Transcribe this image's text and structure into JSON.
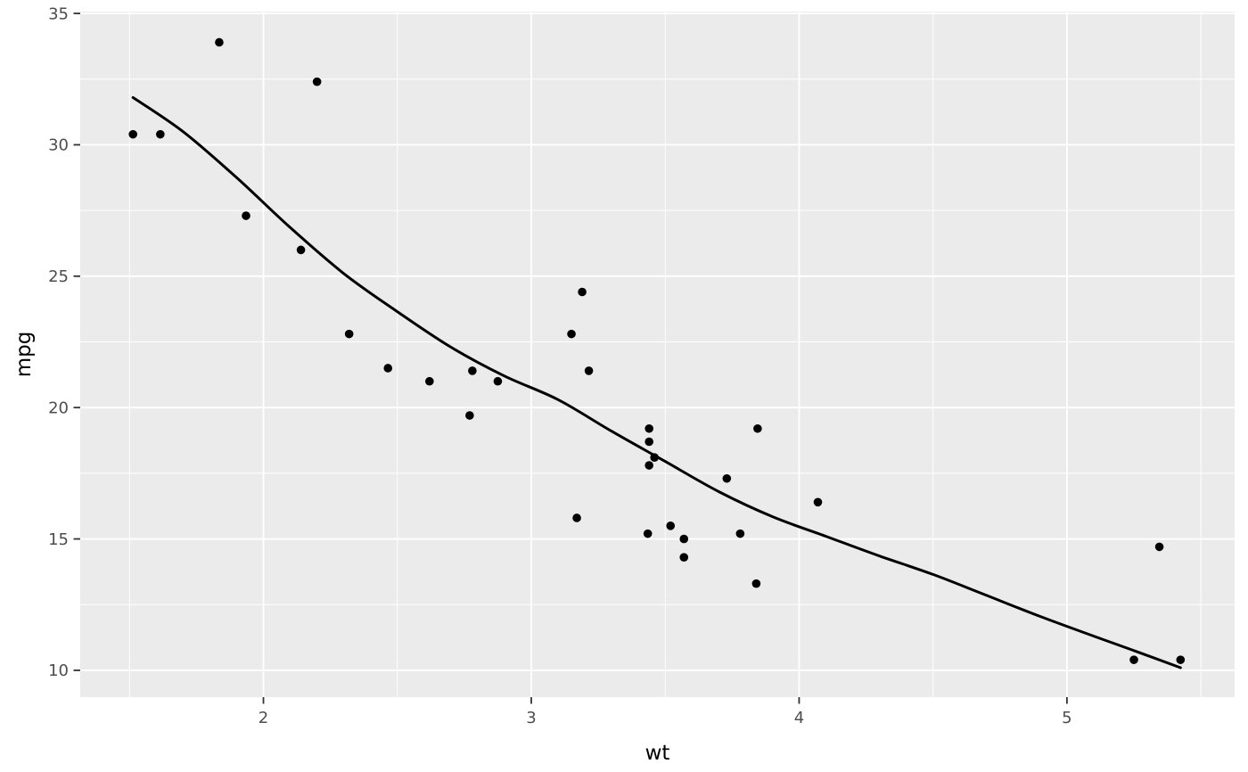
{
  "chart_data": {
    "type": "scatter",
    "title": "",
    "xlabel": "wt",
    "ylabel": "mpg",
    "x_ticks": [
      2,
      3,
      4,
      5
    ],
    "y_ticks": [
      10,
      15,
      20,
      25,
      30,
      35
    ],
    "x_minor_ticks": [
      1.5,
      2.5,
      3.5,
      4.5,
      5.5
    ],
    "y_minor_ticks": [
      12.5,
      17.5,
      22.5,
      27.5,
      32.5
    ],
    "xlim": [
      1.316,
      5.626
    ],
    "ylim": [
      8.98,
      35.07
    ],
    "grid": "on",
    "legend": "none",
    "theme": "ggplot2-grey",
    "points_columns": [
      "wt",
      "mpg"
    ],
    "points": [
      [
        2.62,
        21.0
      ],
      [
        2.875,
        21.0
      ],
      [
        2.32,
        22.8
      ],
      [
        3.215,
        21.4
      ],
      [
        3.44,
        18.7
      ],
      [
        3.46,
        18.1
      ],
      [
        3.57,
        14.3
      ],
      [
        3.19,
        24.4
      ],
      [
        3.15,
        22.8
      ],
      [
        3.44,
        19.2
      ],
      [
        3.44,
        17.8
      ],
      [
        4.07,
        16.4
      ],
      [
        3.73,
        17.3
      ],
      [
        3.78,
        15.2
      ],
      [
        5.25,
        10.4
      ],
      [
        5.424,
        10.4
      ],
      [
        5.345,
        14.7
      ],
      [
        2.2,
        32.4
      ],
      [
        1.615,
        30.4
      ],
      [
        1.835,
        33.9
      ],
      [
        2.465,
        21.5
      ],
      [
        3.52,
        15.5
      ],
      [
        3.435,
        15.2
      ],
      [
        3.84,
        13.3
      ],
      [
        3.845,
        19.2
      ],
      [
        1.935,
        27.3
      ],
      [
        2.14,
        26.0
      ],
      [
        1.513,
        30.4
      ],
      [
        3.17,
        15.8
      ],
      [
        2.77,
        19.7
      ],
      [
        3.57,
        15.0
      ],
      [
        2.78,
        21.4
      ]
    ],
    "smooth_line": {
      "type": "loess",
      "se_band": false,
      "anchors": [
        [
          1.513,
          31.8
        ],
        [
          1.7,
          30.5
        ],
        [
          1.9,
          28.75
        ],
        [
          2.1,
          26.85
        ],
        [
          2.3,
          25.1
        ],
        [
          2.5,
          23.65
        ],
        [
          2.7,
          22.3
        ],
        [
          2.9,
          21.2
        ],
        [
          3.1,
          20.3
        ],
        [
          3.3,
          19.1
        ],
        [
          3.5,
          17.95
        ],
        [
          3.7,
          16.8
        ],
        [
          3.9,
          15.85
        ],
        [
          4.1,
          15.1
        ],
        [
          4.3,
          14.35
        ],
        [
          4.5,
          13.65
        ],
        [
          4.7,
          12.85
        ],
        [
          4.9,
          12.05
        ],
        [
          5.1,
          11.3
        ],
        [
          5.25,
          10.75
        ],
        [
          5.424,
          10.1
        ]
      ]
    },
    "colors": {
      "background": "#FFFFFF",
      "panel_bg": "#EBEBEB",
      "grid_major": "#FFFFFF",
      "grid_minor": "#FFFFFF",
      "point": "#000000",
      "smooth_line": "#000000",
      "tick_mark": "#333333",
      "tick_label": "#4D4D4D",
      "axis_title": "#000000"
    }
  }
}
